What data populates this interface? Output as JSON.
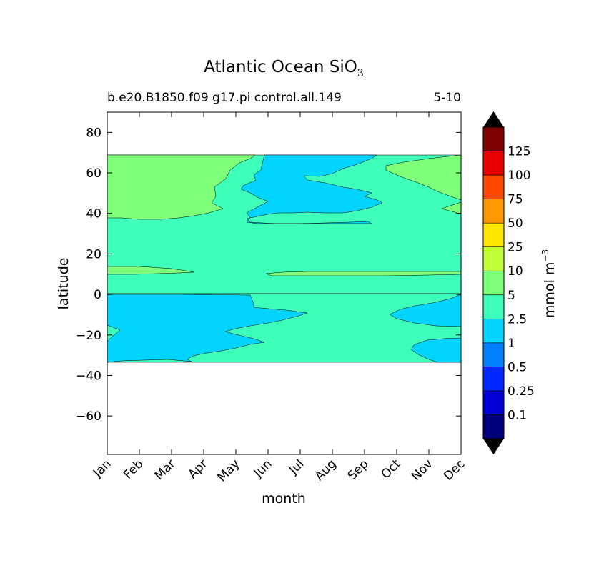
{
  "chart_data": {
    "type": "contour",
    "title": "Atlantic Ocean SiO",
    "title_subscript": "3",
    "subtitle_left": "b.e20.B1850.f09 g17.pi control.all.149",
    "subtitle_right": "5-10",
    "xlabel": "month",
    "ylabel": "latitude",
    "x_categories": [
      "Jan",
      "Feb",
      "Mar",
      "Apr",
      "May",
      "Jun",
      "Jul",
      "Aug",
      "Sep",
      "Oct",
      "Nov",
      "Dec"
    ],
    "y_ticks": [
      80,
      60,
      40,
      20,
      0,
      -20,
      -40,
      -60
    ],
    "y_tick_labels": [
      "80",
      "60",
      "40",
      "20",
      "0",
      "−20",
      "−40",
      "−60"
    ],
    "ylim": [
      -79,
      90
    ],
    "data_extent_lat": [
      -34,
      68
    ],
    "colorbar": {
      "label": "mmol m",
      "label_superscript": "−3",
      "levels": [
        0,
        0.1,
        0.25,
        0.5,
        1,
        2.5,
        5,
        10,
        25,
        50,
        75,
        100,
        125,
        150
      ],
      "tick_labels": [
        "0.1",
        "0.25",
        "0.5",
        "1",
        "2.5",
        "5",
        "10",
        "25",
        "50",
        "75",
        "100",
        "125"
      ],
      "colors": [
        "#00007f",
        "#0000d8",
        "#0028ff",
        "#0080ff",
        "#00d4ff",
        "#3dffba",
        "#7dff7a",
        "#c1ff36",
        "#ffe500",
        "#ff9800",
        "#ff4700",
        "#e80000",
        "#7f0000"
      ],
      "extend_min_color": "#000000",
      "extend_max_color": "#000000"
    },
    "regions": [
      {
        "name": "band-2.5-5",
        "value_range": [
          2.5,
          5
        ],
        "lat_range": [
          -34,
          68
        ],
        "months": "Jan-Dec",
        "color": "#3dffba"
      },
      {
        "name": "north-high",
        "value_range": [
          5,
          10
        ],
        "lat_range": [
          37,
          68
        ],
        "months": "Jan-May, Oct-Dec",
        "color": "#7dff7a"
      },
      {
        "name": "north-low",
        "value_range": [
          1,
          2.5
        ],
        "lat_range": [
          35,
          68
        ],
        "months": "Jun-Oct",
        "color": "#00d4ff"
      },
      {
        "name": "tropical-high",
        "value_range": [
          5,
          10
        ],
        "lat_range": [
          9,
          13
        ],
        "months": "Jan-Apr, Jun-Dec",
        "color": "#7dff7a"
      },
      {
        "name": "south-low",
        "value_range": [
          1,
          2.5
        ],
        "lat_range": [
          -33,
          0
        ],
        "months": "Jan-Jul, Oct-Dec",
        "color": "#00d4ff"
      }
    ]
  }
}
